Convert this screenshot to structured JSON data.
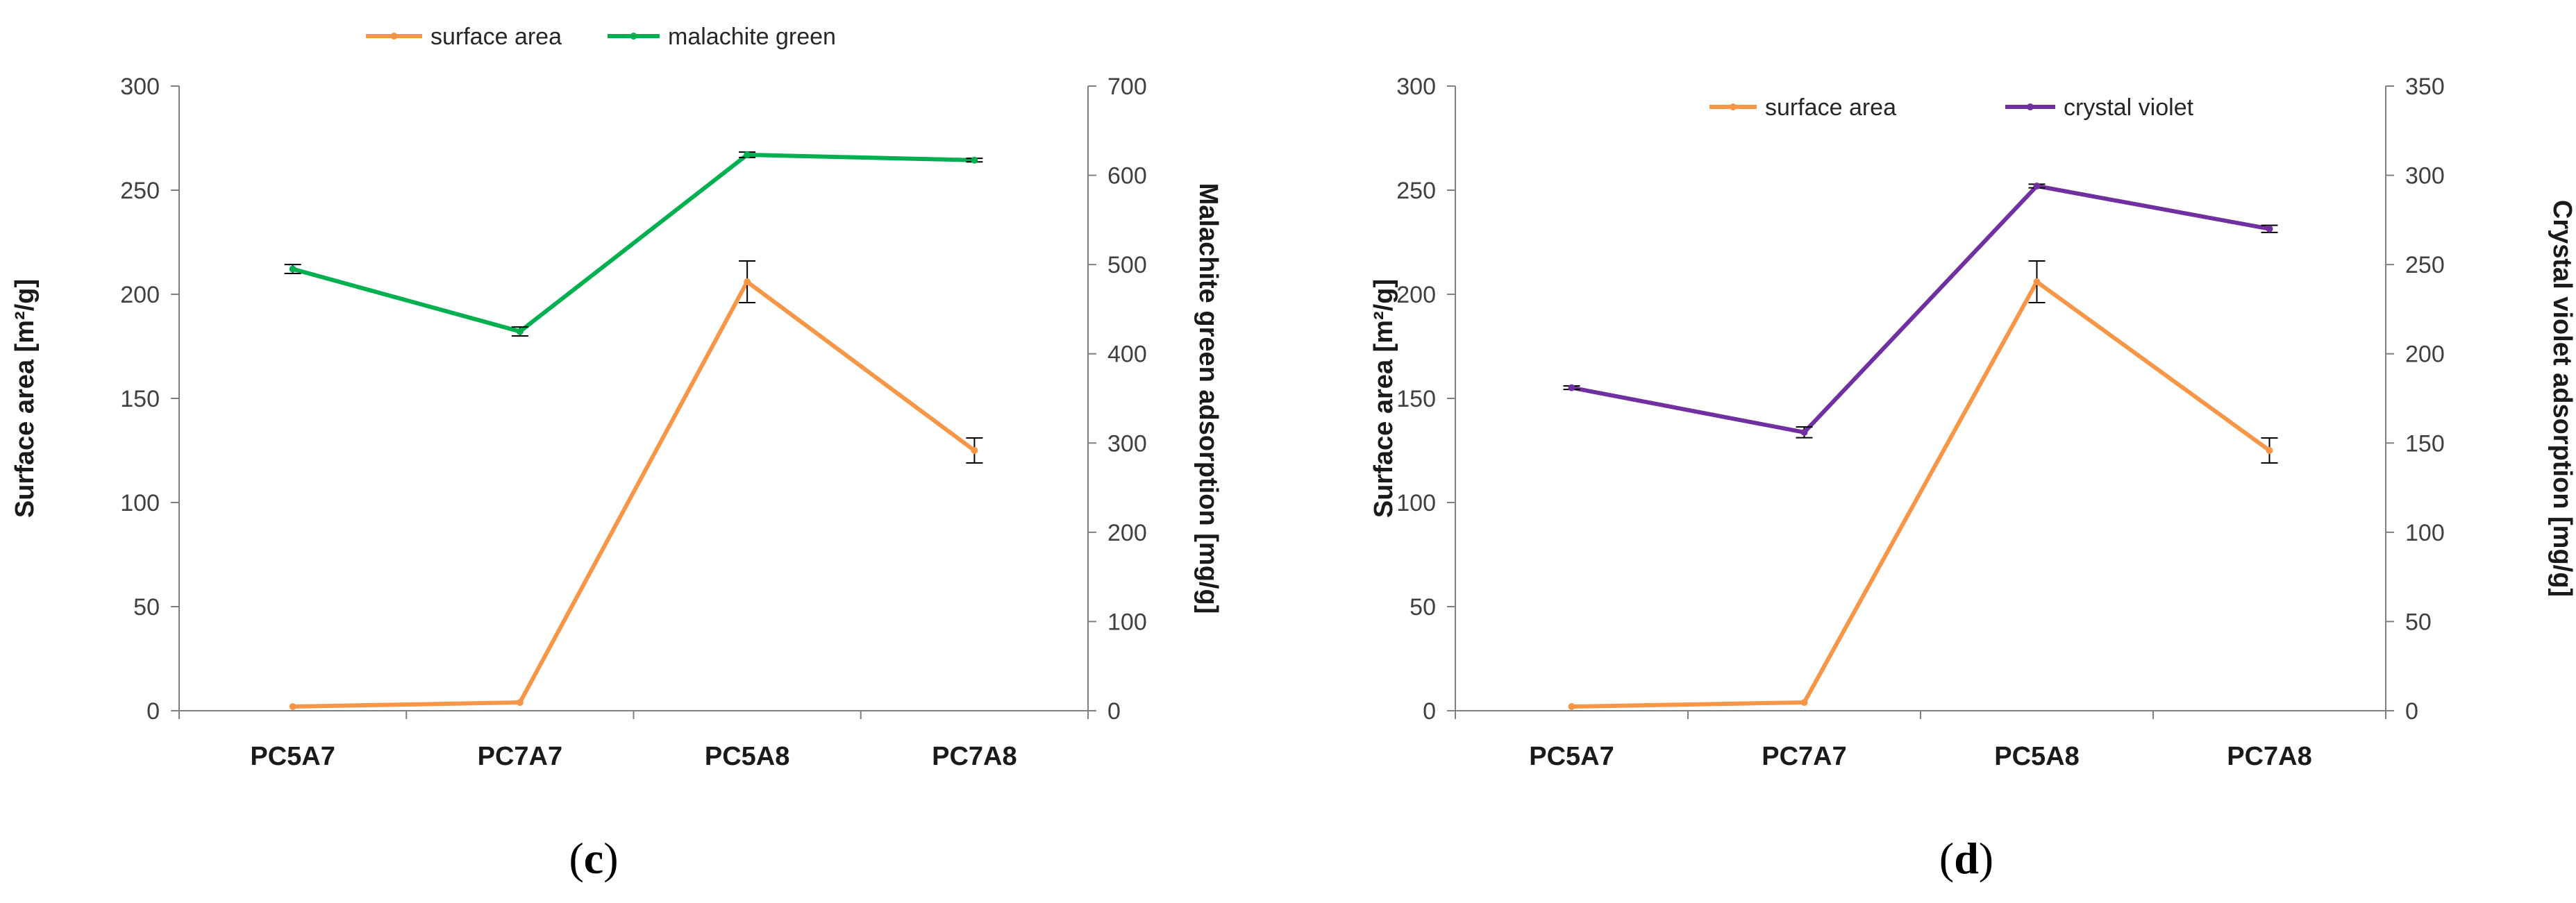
{
  "chart_data": [
    {
      "panel_label": "c",
      "type": "line",
      "categories": [
        "PC5A7",
        "PC7A7",
        "PC5A8",
        "PC7A8"
      ],
      "y_left": {
        "label": "Surface area [m²/g]",
        "range": [
          0,
          300
        ],
        "ticks": [
          0,
          50,
          100,
          150,
          200,
          250,
          300
        ]
      },
      "y_right": {
        "label": "Malachite green adsorption [mg/g]",
        "range": [
          0,
          700
        ],
        "ticks": [
          0,
          100,
          200,
          300,
          400,
          500,
          600,
          700
        ]
      },
      "legend": {
        "placement": "top",
        "entries": [
          "surface area",
          "malachite green"
        ]
      },
      "grid": false,
      "series": [
        {
          "name": "surface area",
          "axis": "left",
          "color": "#F79646",
          "values": [
            2,
            4,
            206,
            125
          ],
          "errors": [
            0,
            0,
            10,
            6
          ]
        },
        {
          "name": "malachite green",
          "axis": "right",
          "color": "#00B050",
          "values": [
            495,
            425,
            623,
            617
          ],
          "errors": [
            5,
            5,
            3,
            2
          ]
        }
      ]
    },
    {
      "panel_label": "d",
      "type": "line",
      "categories": [
        "PC5A7",
        "PC7A7",
        "PC5A8",
        "PC7A8"
      ],
      "y_left": {
        "label": "Surface area [m²/g]",
        "range": [
          0,
          300
        ],
        "ticks": [
          0,
          50,
          100,
          150,
          200,
          250,
          300
        ]
      },
      "y_right": {
        "label": "Crystal violet adsorption [mg/g]",
        "range": [
          0,
          350
        ],
        "ticks": [
          0,
          50,
          100,
          150,
          200,
          250,
          300,
          350
        ]
      },
      "legend": {
        "placement": "top",
        "entries": [
          "surface area",
          "crystal violet"
        ]
      },
      "grid": false,
      "series": [
        {
          "name": "surface area",
          "axis": "left",
          "color": "#F79646",
          "values": [
            2,
            4,
            206,
            125
          ],
          "errors": [
            0,
            0,
            10,
            6
          ]
        },
        {
          "name": "crystal violet",
          "axis": "right",
          "color": "#7030A0",
          "values": [
            181,
            156,
            294,
            270
          ],
          "errors": [
            1,
            3,
            1,
            2
          ]
        }
      ]
    }
  ]
}
